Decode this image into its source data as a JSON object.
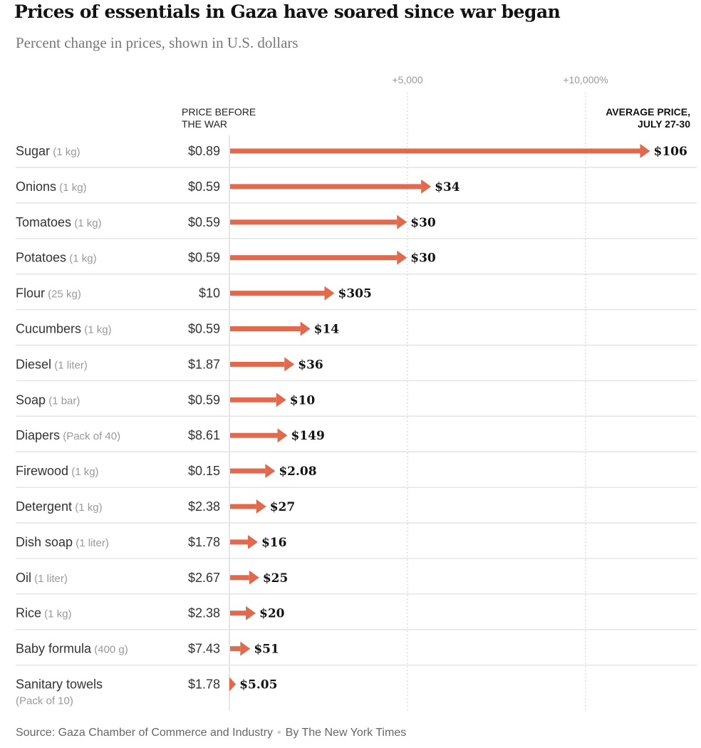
{
  "chart_data": {
    "type": "bar",
    "title": "Prices of essentials in Gaza have soared since war began",
    "subtitle": "Percent change in prices, shown in U.S. dollars",
    "xlabel": "Percent change",
    "ylabel": "",
    "xlim": [
      0,
      13000
    ],
    "grid": true,
    "ticks": [
      {
        "value": 5000,
        "label": "+5,000"
      },
      {
        "value": 10000,
        "label": "+10,000%"
      }
    ],
    "column_headers": {
      "before": [
        "PRICE BEFORE",
        "THE WAR"
      ],
      "after": [
        "AVERAGE PRICE,",
        "JULY 27-30"
      ]
    },
    "accent_color": "#e0694e",
    "items": [
      {
        "name": "Sugar",
        "unit": "(1 kg)",
        "before": 0.89,
        "after": 106,
        "before_label": "$0.89",
        "after_label": "$106"
      },
      {
        "name": "Onions",
        "unit": "(1 kg)",
        "before": 0.59,
        "after": 34,
        "before_label": "$0.59",
        "after_label": "$34"
      },
      {
        "name": "Tomatoes",
        "unit": "(1 kg)",
        "before": 0.59,
        "after": 30,
        "before_label": "$0.59",
        "after_label": "$30"
      },
      {
        "name": "Potatoes",
        "unit": "(1 kg)",
        "before": 0.59,
        "after": 30,
        "before_label": "$0.59",
        "after_label": "$30"
      },
      {
        "name": "Flour",
        "unit": "(25 kg)",
        "before": 10,
        "after": 305,
        "before_label": "$10",
        "after_label": "$305"
      },
      {
        "name": "Cucumbers",
        "unit": "(1 kg)",
        "before": 0.59,
        "after": 14,
        "before_label": "$0.59",
        "after_label": "$14"
      },
      {
        "name": "Diesel",
        "unit": "(1 liter)",
        "before": 1.87,
        "after": 36,
        "before_label": "$1.87",
        "after_label": "$36"
      },
      {
        "name": "Soap",
        "unit": "(1 bar)",
        "before": 0.59,
        "after": 10,
        "before_label": "$0.59",
        "after_label": "$10"
      },
      {
        "name": "Diapers",
        "unit": "(Pack of 40)",
        "before": 8.61,
        "after": 149,
        "before_label": "$8.61",
        "after_label": "$149"
      },
      {
        "name": "Firewood",
        "unit": "(1 kg)",
        "before": 0.15,
        "after": 2.08,
        "before_label": "$0.15",
        "after_label": "$2.08"
      },
      {
        "name": "Detergent",
        "unit": "(1 kg)",
        "before": 2.38,
        "after": 27,
        "before_label": "$2.38",
        "after_label": "$27"
      },
      {
        "name": "Dish soap",
        "unit": "(1 liter)",
        "before": 1.78,
        "after": 16,
        "before_label": "$1.78",
        "after_label": "$16"
      },
      {
        "name": "Oil",
        "unit": "(1 liter)",
        "before": 2.67,
        "after": 25,
        "before_label": "$2.67",
        "after_label": "$25"
      },
      {
        "name": "Rice",
        "unit": "(1 kg)",
        "before": 2.38,
        "after": 20,
        "before_label": "$2.38",
        "after_label": "$20"
      },
      {
        "name": "Baby formula",
        "unit": "(400 g)",
        "before": 7.43,
        "after": 51,
        "before_label": "$7.43",
        "after_label": "$51"
      },
      {
        "name": "Sanitary towels",
        "unit": "(Pack of 10)",
        "before": 1.78,
        "after": 5.05,
        "before_label": "$1.78",
        "after_label": "$5.05",
        "unit_on_new_line": true
      }
    ]
  },
  "footer": {
    "source": "Source: Gaza Chamber of Commerce and Industry",
    "separator": "•",
    "credit": "By The New York Times"
  }
}
